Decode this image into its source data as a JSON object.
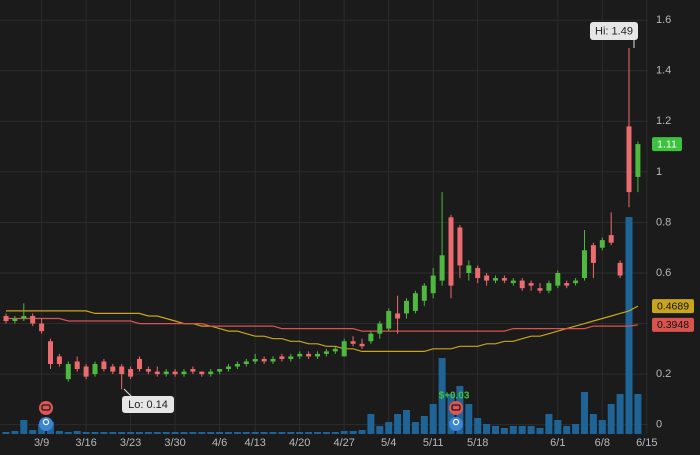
{
  "chart_data": {
    "type": "candlestick",
    "ylim": [
      -0.12,
      1.68
    ],
    "yticks": [
      0,
      0.2,
      0.4,
      0.6,
      0.8,
      1,
      1.2,
      1.4,
      1.6
    ],
    "grid": true,
    "up_color": "#4fb83f",
    "down_color": "#ec6b6f",
    "categories": [
      null,
      null,
      null,
      null,
      "3/9",
      null,
      null,
      null,
      null,
      "3/16",
      null,
      null,
      null,
      null,
      "3/23",
      null,
      null,
      null,
      null,
      "3/30",
      null,
      null,
      null,
      null,
      "4/6",
      null,
      null,
      null,
      "4/13",
      null,
      null,
      null,
      null,
      "4/20",
      null,
      null,
      null,
      null,
      "4/27",
      null,
      null,
      null,
      null,
      "5/4",
      null,
      null,
      null,
      null,
      "5/11",
      null,
      null,
      null,
      null,
      "5/18",
      null,
      null,
      null,
      null,
      null,
      null,
      null,
      null,
      "6/1",
      null,
      null,
      null,
      null,
      "6/8",
      null,
      null,
      null,
      null,
      "6/15"
    ],
    "open": [
      0.43,
      0.41,
      0.42,
      0.43,
      0.4,
      0.33,
      0.27,
      0.18,
      0.25,
      0.23,
      0.2,
      0.25,
      0.23,
      0.23,
      0.22,
      0.26,
      0.22,
      0.21,
      0.2,
      0.21,
      0.2,
      0.22,
      0.21,
      0.2,
      0.21,
      0.22,
      0.23,
      0.24,
      0.25,
      0.26,
      0.25,
      0.27,
      0.26,
      0.27,
      0.28,
      0.27,
      0.28,
      0.29,
      0.27,
      0.33,
      0.32,
      0.33,
      0.36,
      0.38,
      0.44,
      0.44,
      0.45,
      0.49,
      0.52,
      0.57,
      0.82,
      0.78,
      0.6,
      0.62,
      0.59,
      0.57,
      0.58,
      0.56,
      0.57,
      0.56,
      0.54,
      0.53,
      0.55,
      0.56,
      0.56,
      0.58,
      0.71,
      0.7,
      0.75,
      0.64,
      1.18,
      0.98,
      null
    ],
    "high": [
      0.44,
      0.43,
      0.48,
      0.44,
      0.42,
      0.34,
      0.28,
      0.25,
      0.27,
      0.24,
      0.25,
      0.26,
      0.24,
      0.24,
      0.23,
      0.27,
      0.23,
      0.23,
      0.22,
      0.22,
      0.22,
      0.23,
      0.21,
      0.22,
      0.22,
      0.24,
      0.25,
      0.26,
      0.28,
      0.27,
      0.27,
      0.28,
      0.28,
      0.29,
      0.29,
      0.29,
      0.3,
      0.31,
      0.34,
      0.35,
      0.34,
      0.37,
      0.41,
      0.46,
      0.51,
      0.5,
      0.53,
      0.56,
      0.62,
      0.92,
      0.83,
      0.79,
      0.65,
      0.63,
      0.6,
      0.59,
      0.59,
      0.58,
      0.58,
      0.57,
      0.56,
      0.57,
      0.61,
      0.57,
      0.58,
      0.77,
      0.72,
      0.74,
      0.84,
      0.65,
      1.49,
      1.12,
      null
    ],
    "low": [
      0.4,
      0.4,
      0.41,
      0.39,
      0.36,
      0.22,
      0.23,
      0.17,
      0.21,
      0.18,
      0.19,
      0.21,
      0.2,
      0.14,
      0.18,
      0.21,
      0.2,
      0.19,
      0.19,
      0.19,
      0.19,
      0.2,
      0.19,
      0.19,
      0.2,
      0.21,
      0.22,
      0.23,
      0.24,
      0.24,
      0.24,
      0.25,
      0.25,
      0.26,
      0.26,
      0.26,
      0.27,
      0.28,
      0.27,
      0.31,
      0.3,
      0.32,
      0.34,
      0.37,
      0.36,
      0.42,
      0.44,
      0.47,
      0.5,
      0.55,
      0.5,
      0.58,
      0.57,
      0.56,
      0.55,
      0.56,
      0.56,
      0.55,
      0.53,
      0.53,
      0.52,
      0.52,
      0.54,
      0.54,
      0.55,
      0.57,
      0.58,
      0.69,
      0.71,
      0.58,
      0.86,
      0.92,
      null
    ],
    "close": [
      0.41,
      0.42,
      0.43,
      0.4,
      0.37,
      0.24,
      0.24,
      0.24,
      0.22,
      0.19,
      0.24,
      0.22,
      0.21,
      0.2,
      0.19,
      0.22,
      0.21,
      0.2,
      0.21,
      0.2,
      0.21,
      0.21,
      0.2,
      0.21,
      0.22,
      0.23,
      0.24,
      0.25,
      0.26,
      0.25,
      0.26,
      0.26,
      0.27,
      0.28,
      0.27,
      0.28,
      0.29,
      0.3,
      0.33,
      0.32,
      0.31,
      0.36,
      0.4,
      0.45,
      0.42,
      0.49,
      0.52,
      0.55,
      0.59,
      0.67,
      0.55,
      0.63,
      0.63,
      0.58,
      0.57,
      0.58,
      0.57,
      0.57,
      0.54,
      0.55,
      0.53,
      0.56,
      0.6,
      0.55,
      0.57,
      0.69,
      0.64,
      0.73,
      0.72,
      0.59,
      0.92,
      1.11,
      null
    ],
    "volume": {
      "color": "#1e6496",
      "values": [
        2,
        3,
        14,
        4,
        10,
        12,
        3,
        2,
        3,
        2,
        2,
        2,
        2,
        2,
        2,
        2,
        2,
        2,
        2,
        2,
        2,
        2,
        2,
        2,
        2,
        2,
        2,
        2,
        2,
        2,
        2,
        2,
        2,
        2,
        2,
        2,
        2,
        2,
        3,
        3,
        4,
        20,
        8,
        12,
        20,
        24,
        12,
        18,
        30,
        76,
        40,
        48,
        30,
        16,
        10,
        8,
        6,
        8,
        8,
        8,
        6,
        20,
        14,
        8,
        10,
        42,
        20,
        14,
        30,
        40,
        217,
        40,
        null
      ]
    },
    "series": [
      {
        "color": "#c9a51c",
        "values": [
          0.45,
          0.45,
          0.45,
          0.45,
          0.45,
          0.45,
          0.45,
          0.45,
          0.45,
          0.45,
          0.44,
          0.44,
          0.44,
          0.44,
          0.44,
          0.44,
          0.43,
          0.43,
          0.42,
          0.41,
          0.4,
          0.4,
          0.39,
          0.39,
          0.38,
          0.37,
          0.37,
          0.36,
          0.35,
          0.35,
          0.34,
          0.34,
          0.33,
          0.33,
          0.32,
          0.32,
          0.31,
          0.31,
          0.3,
          0.3,
          0.29,
          0.29,
          0.29,
          0.29,
          0.29,
          0.29,
          0.29,
          0.29,
          0.3,
          0.3,
          0.3,
          0.31,
          0.31,
          0.31,
          0.32,
          0.32,
          0.33,
          0.33,
          0.34,
          0.35,
          0.35,
          0.36,
          0.37,
          0.38,
          0.39,
          0.4,
          0.41,
          0.42,
          0.43,
          0.44,
          0.45,
          0.4689,
          null
        ]
      },
      {
        "color": "#d9534f",
        "values": [
          0.42,
          0.42,
          0.42,
          0.42,
          0.42,
          0.42,
          0.42,
          0.41,
          0.41,
          0.41,
          0.41,
          0.41,
          0.41,
          0.41,
          0.41,
          0.4,
          0.4,
          0.4,
          0.4,
          0.4,
          0.4,
          0.4,
          0.4,
          0.39,
          0.39,
          0.39,
          0.39,
          0.39,
          0.39,
          0.39,
          0.39,
          0.38,
          0.38,
          0.38,
          0.38,
          0.38,
          0.38,
          0.38,
          0.38,
          0.38,
          0.37,
          0.37,
          0.37,
          0.37,
          0.37,
          0.37,
          0.37,
          0.37,
          0.37,
          0.37,
          0.37,
          0.37,
          0.37,
          0.37,
          0.37,
          0.37,
          0.37,
          0.38,
          0.38,
          0.38,
          0.38,
          0.38,
          0.38,
          0.38,
          0.38,
          0.38,
          0.39,
          0.39,
          0.39,
          0.39,
          0.39,
          0.3948,
          null
        ]
      }
    ],
    "annotations": [
      {
        "text": "Hi: 1.49"
      },
      {
        "text": "Lo: 0.14"
      },
      {
        "text": "$+0.03"
      }
    ]
  }
}
